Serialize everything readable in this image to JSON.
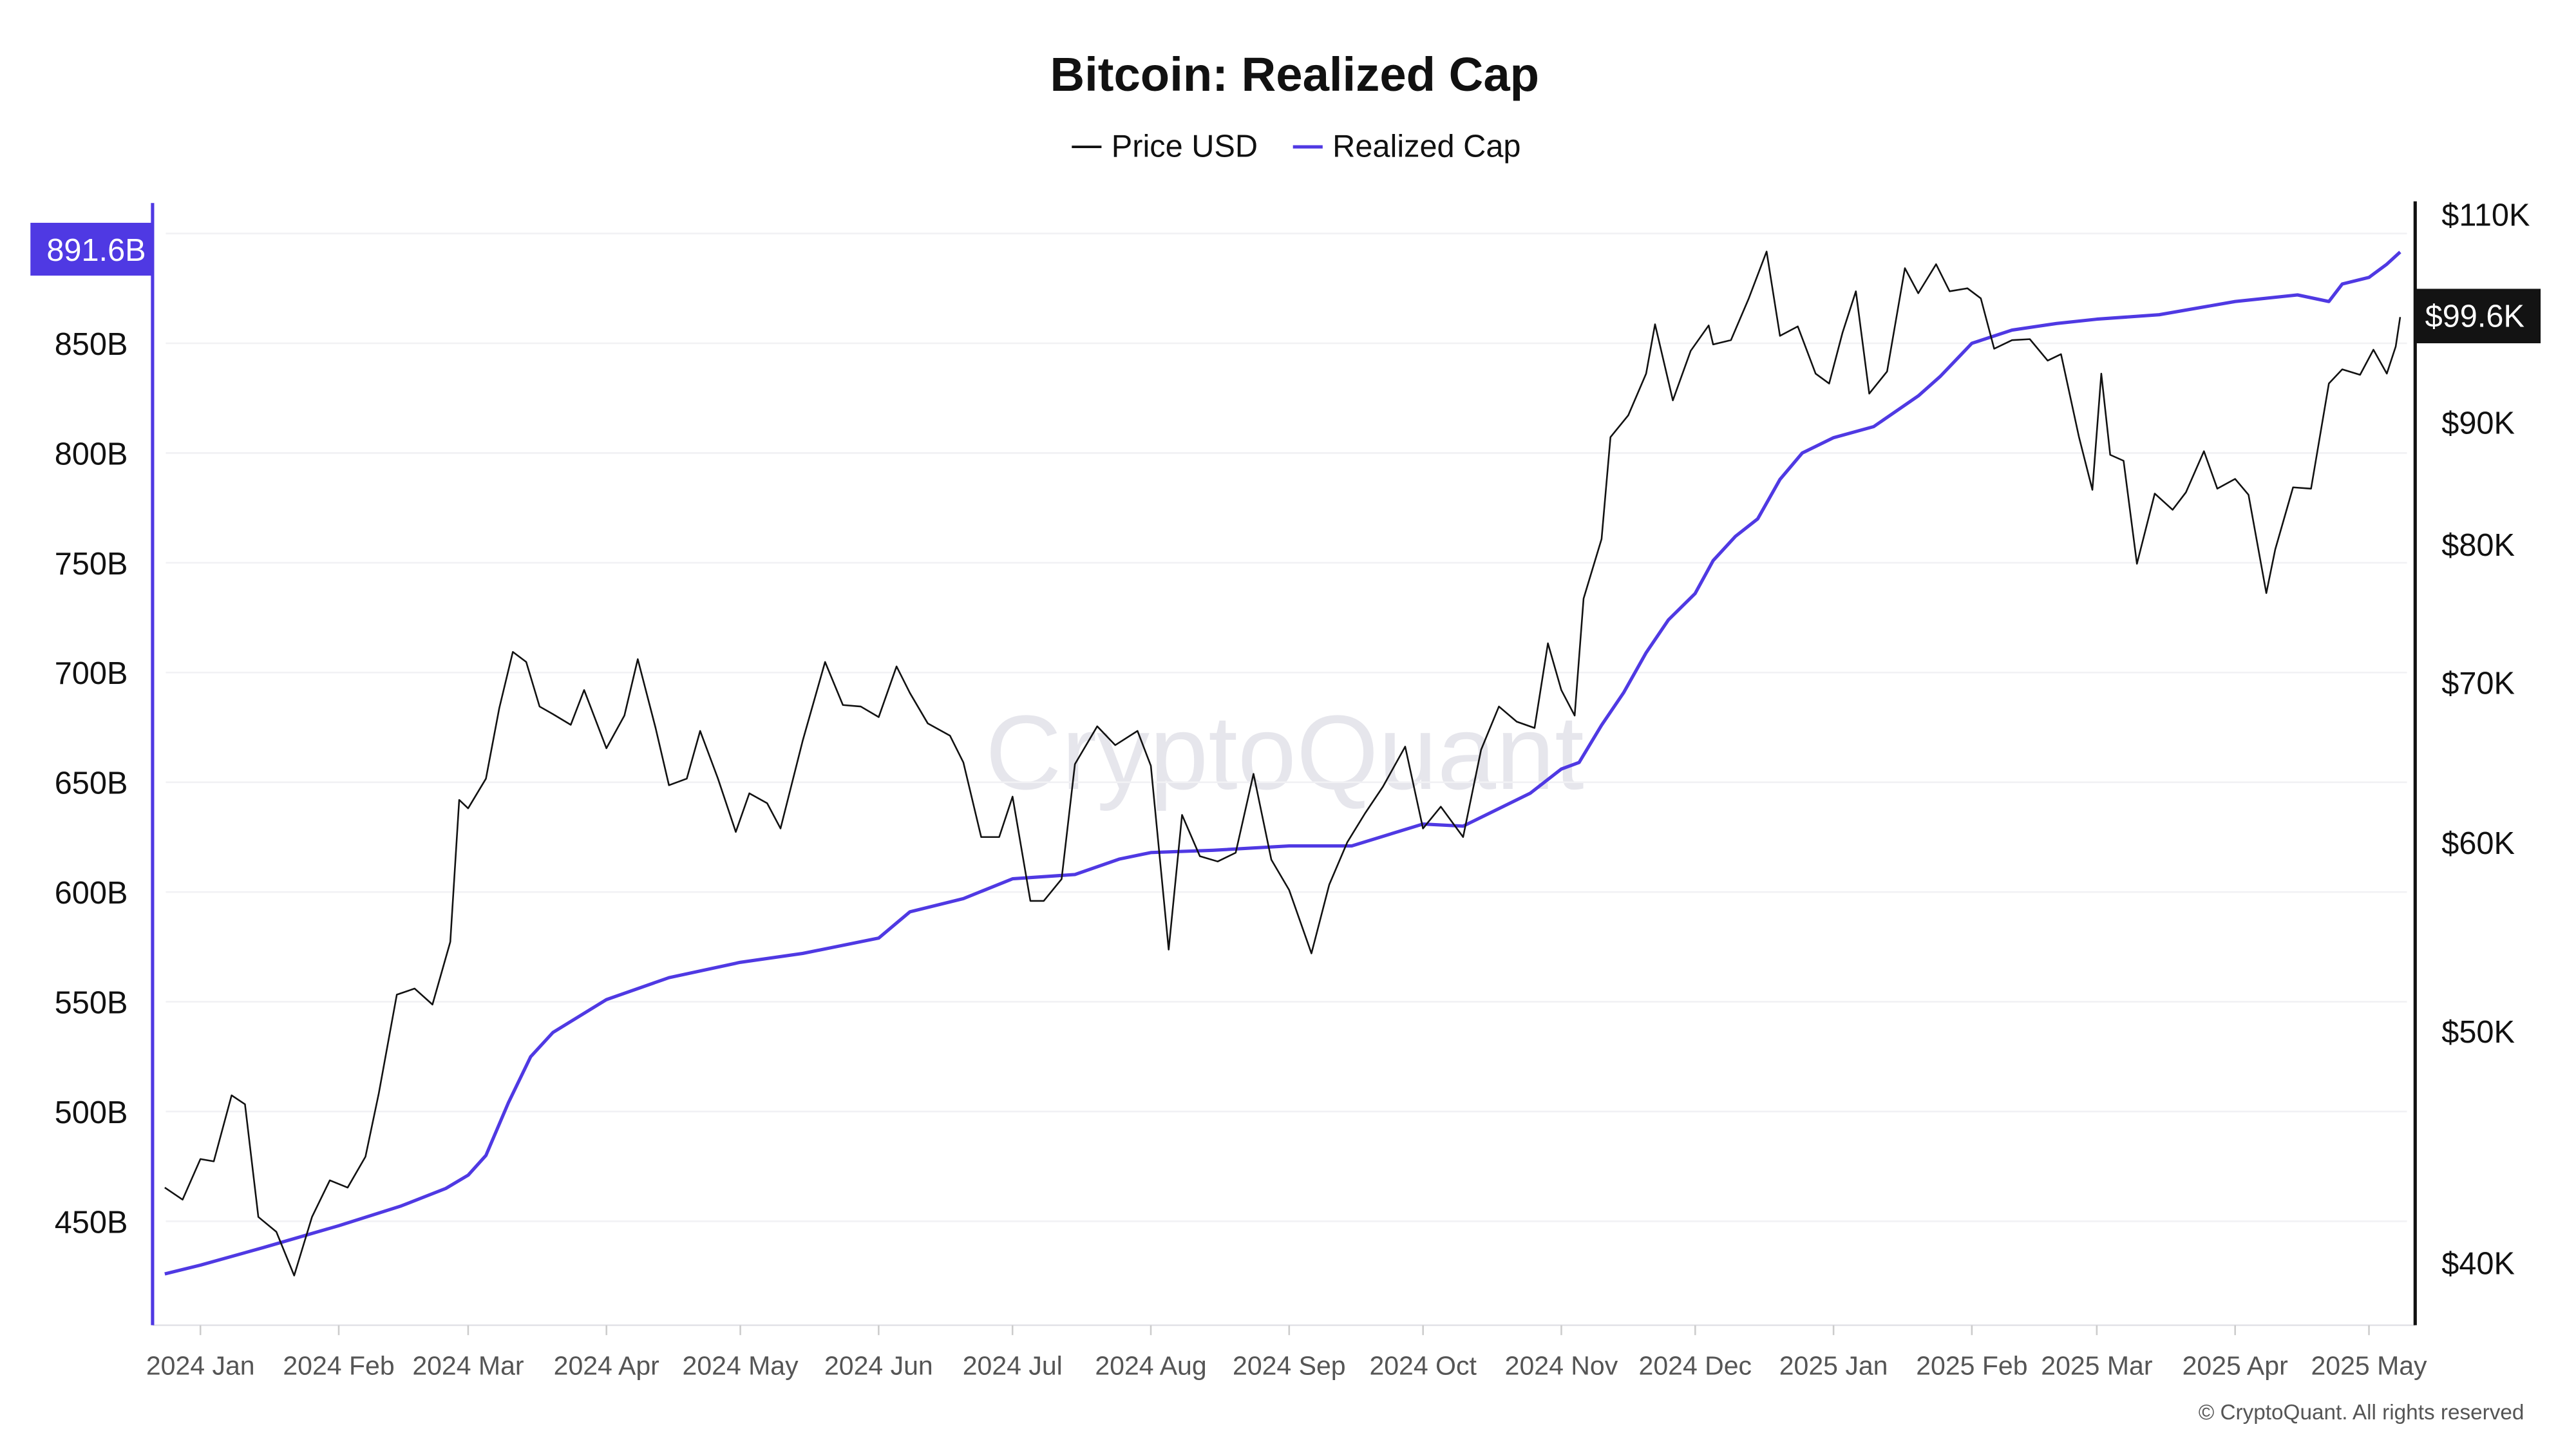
{
  "chart_data": {
    "type": "line",
    "title": "Bitcoin: Realized Cap",
    "legend": {
      "placement": "top-center",
      "items": [
        {
          "name": "Price USD",
          "color": "#111111"
        },
        {
          "name": "Realized Cap",
          "color": "#4f39e3"
        }
      ]
    },
    "grid": true,
    "watermark": "CryptoQuant",
    "copyright": "© CryptoQuant. All rights reserved",
    "x_axis": {
      "ticks": [
        "2024-01-01",
        "2024-02-01",
        "2024-03-01",
        "2024-04-01",
        "2024-05-01",
        "2024-06-01",
        "2024-07-01",
        "2024-08-01",
        "2024-09-01",
        "2024-10-01",
        "2024-11-01",
        "2024-12-01",
        "2025-01-01",
        "2025-02-01",
        "2025-03-01",
        "2025-04-01",
        "2025-05-01"
      ],
      "tick_labels": [
        "2024 Jan",
        "2024 Feb",
        "2024 Mar",
        "2024 Apr",
        "2024 May",
        "2024 Jun",
        "2024 Jul",
        "2024 Aug",
        "2024 Sep",
        "2024 Oct",
        "2024 Nov",
        "2024 Dec",
        "2025 Jan",
        "2025 Feb",
        "2025 Mar",
        "2025 Apr",
        "2025 May"
      ]
    },
    "y_left": {
      "series": "Realized Cap",
      "unit": "B USD",
      "scale": "linear",
      "range": [
        405,
        918
      ],
      "ticks": [
        450,
        500,
        550,
        600,
        650,
        700,
        750,
        800,
        850,
        900
      ],
      "tick_labels": [
        "450B",
        "500B",
        "550B",
        "600B",
        "650B",
        "700B",
        "750B",
        "800B",
        "850B",
        ""
      ],
      "current_value_label": "891.6B",
      "color": "#4f39e3"
    },
    "y_right": {
      "series": "Price USD",
      "unit": "K USD",
      "scale": "log",
      "range": [
        37,
        112
      ],
      "ticks": [
        40,
        50,
        60,
        70,
        80,
        90,
        110
      ],
      "tick_labels": [
        "$40K",
        "$50K",
        "$60K",
        "$70K",
        "$80K",
        "$90K",
        "$110K"
      ],
      "current_value_label": "$99.6K",
      "color": "#111111"
    },
    "series": [
      {
        "name": "Realized Cap",
        "axis": "left",
        "color": "#4f39e3",
        "points": [
          [
            "2023-12-24",
            426
          ],
          [
            "2024-01-01",
            430
          ],
          [
            "2024-01-15",
            438
          ],
          [
            "2024-02-01",
            448
          ],
          [
            "2024-02-15",
            457
          ],
          [
            "2024-02-25",
            465
          ],
          [
            "2024-03-01",
            471
          ],
          [
            "2024-03-05",
            480
          ],
          [
            "2024-03-10",
            504
          ],
          [
            "2024-03-15",
            525
          ],
          [
            "2024-03-20",
            536
          ],
          [
            "2024-04-01",
            551
          ],
          [
            "2024-04-15",
            561
          ],
          [
            "2024-05-01",
            568
          ],
          [
            "2024-05-15",
            572
          ],
          [
            "2024-06-01",
            579
          ],
          [
            "2024-06-08",
            591
          ],
          [
            "2024-06-20",
            597
          ],
          [
            "2024-07-01",
            606
          ],
          [
            "2024-07-15",
            608
          ],
          [
            "2024-07-25",
            615
          ],
          [
            "2024-08-01",
            618
          ],
          [
            "2024-08-15",
            619
          ],
          [
            "2024-09-01",
            621
          ],
          [
            "2024-09-15",
            621
          ],
          [
            "2024-10-01",
            631
          ],
          [
            "2024-10-10",
            630
          ],
          [
            "2024-10-25",
            645
          ],
          [
            "2024-11-01",
            656
          ],
          [
            "2024-11-05",
            659
          ],
          [
            "2024-11-10",
            676
          ],
          [
            "2024-11-15",
            691
          ],
          [
            "2024-11-20",
            709
          ],
          [
            "2024-11-25",
            724
          ],
          [
            "2024-12-01",
            736
          ],
          [
            "2024-12-05",
            751
          ],
          [
            "2024-12-10",
            762
          ],
          [
            "2024-12-15",
            770
          ],
          [
            "2024-12-20",
            788
          ],
          [
            "2024-12-25",
            800
          ],
          [
            "2025-01-01",
            807
          ],
          [
            "2025-01-10",
            812
          ],
          [
            "2025-01-20",
            826
          ],
          [
            "2025-01-25",
            835
          ],
          [
            "2025-02-01",
            850
          ],
          [
            "2025-02-10",
            856
          ],
          [
            "2025-02-20",
            859
          ],
          [
            "2025-03-01",
            861
          ],
          [
            "2025-03-15",
            863
          ],
          [
            "2025-04-01",
            869
          ],
          [
            "2025-04-15",
            872
          ],
          [
            "2025-04-22",
            869
          ],
          [
            "2025-04-25",
            877
          ],
          [
            "2025-05-01",
            880
          ],
          [
            "2025-05-05",
            886
          ],
          [
            "2025-05-08",
            891.6
          ]
        ]
      },
      {
        "name": "Price USD",
        "axis": "right",
        "color": "#111111",
        "points": [
          [
            "2023-12-24",
            43.0
          ],
          [
            "2023-12-28",
            42.5
          ],
          [
            "2024-01-01",
            44.2
          ],
          [
            "2024-01-04",
            44.1
          ],
          [
            "2024-01-08",
            47.0
          ],
          [
            "2024-01-11",
            46.6
          ],
          [
            "2024-01-14",
            41.8
          ],
          [
            "2024-01-18",
            41.2
          ],
          [
            "2024-01-22",
            39.5
          ],
          [
            "2024-01-26",
            41.8
          ],
          [
            "2024-01-30",
            43.3
          ],
          [
            "2024-02-03",
            43.0
          ],
          [
            "2024-02-07",
            44.3
          ],
          [
            "2024-02-10",
            47.1
          ],
          [
            "2024-02-14",
            51.8
          ],
          [
            "2024-02-18",
            52.1
          ],
          [
            "2024-02-22",
            51.3
          ],
          [
            "2024-02-26",
            54.5
          ],
          [
            "2024-02-28",
            62.5
          ],
          [
            "2024-03-01",
            62.0
          ],
          [
            "2024-03-05",
            63.8
          ],
          [
            "2024-03-08",
            68.3
          ],
          [
            "2024-03-11",
            72.1
          ],
          [
            "2024-03-14",
            71.4
          ],
          [
            "2024-03-17",
            68.4
          ],
          [
            "2024-03-20",
            67.9
          ],
          [
            "2024-03-24",
            67.2
          ],
          [
            "2024-03-27",
            69.5
          ],
          [
            "2024-04-01",
            65.7
          ],
          [
            "2024-04-05",
            67.8
          ],
          [
            "2024-04-08",
            71.6
          ],
          [
            "2024-04-12",
            67.0
          ],
          [
            "2024-04-15",
            63.4
          ],
          [
            "2024-04-19",
            63.8
          ],
          [
            "2024-04-22",
            66.8
          ],
          [
            "2024-04-26",
            63.8
          ],
          [
            "2024-04-30",
            60.6
          ],
          [
            "2024-05-03",
            62.9
          ],
          [
            "2024-05-07",
            62.3
          ],
          [
            "2024-05-10",
            60.8
          ],
          [
            "2024-05-15",
            66.2
          ],
          [
            "2024-05-20",
            71.4
          ],
          [
            "2024-05-24",
            68.5
          ],
          [
            "2024-05-28",
            68.4
          ],
          [
            "2024-06-01",
            67.7
          ],
          [
            "2024-06-05",
            71.1
          ],
          [
            "2024-06-08",
            69.3
          ],
          [
            "2024-06-12",
            67.3
          ],
          [
            "2024-06-17",
            66.5
          ],
          [
            "2024-06-20",
            64.8
          ],
          [
            "2024-06-24",
            60.3
          ],
          [
            "2024-06-28",
            60.3
          ],
          [
            "2024-07-01",
            62.7
          ],
          [
            "2024-07-05",
            56.7
          ],
          [
            "2024-07-08",
            56.7
          ],
          [
            "2024-07-12",
            57.9
          ],
          [
            "2024-07-15",
            64.7
          ],
          [
            "2024-07-20",
            67.1
          ],
          [
            "2024-07-24",
            65.9
          ],
          [
            "2024-07-29",
            66.8
          ],
          [
            "2024-08-01",
            64.6
          ],
          [
            "2024-08-05",
            54.1
          ],
          [
            "2024-08-08",
            61.6
          ],
          [
            "2024-08-12",
            59.2
          ],
          [
            "2024-08-16",
            58.9
          ],
          [
            "2024-08-20",
            59.4
          ],
          [
            "2024-08-24",
            64.1
          ],
          [
            "2024-08-28",
            59.0
          ],
          [
            "2024-09-01",
            57.3
          ],
          [
            "2024-09-06",
            53.9
          ],
          [
            "2024-09-10",
            57.6
          ],
          [
            "2024-09-14",
            60.0
          ],
          [
            "2024-09-18",
            61.7
          ],
          [
            "2024-09-22",
            63.3
          ],
          [
            "2024-09-27",
            65.8
          ],
          [
            "2024-10-01",
            60.8
          ],
          [
            "2024-10-05",
            62.1
          ],
          [
            "2024-10-10",
            60.3
          ],
          [
            "2024-10-14",
            65.6
          ],
          [
            "2024-10-18",
            68.4
          ],
          [
            "2024-10-22",
            67.4
          ],
          [
            "2024-10-26",
            67.0
          ],
          [
            "2024-10-29",
            72.7
          ],
          [
            "2024-11-01",
            69.5
          ],
          [
            "2024-11-04",
            67.8
          ],
          [
            "2024-11-06",
            75.9
          ],
          [
            "2024-11-10",
            80.4
          ],
          [
            "2024-11-12",
            88.7
          ],
          [
            "2024-11-16",
            90.6
          ],
          [
            "2024-11-20",
            94.3
          ],
          [
            "2024-11-22",
            98.9
          ],
          [
            "2024-11-26",
            91.9
          ],
          [
            "2024-11-30",
            96.4
          ],
          [
            "2024-12-04",
            98.8
          ],
          [
            "2024-12-05",
            97.0
          ],
          [
            "2024-12-09",
            97.4
          ],
          [
            "2024-12-13",
            101.4
          ],
          [
            "2024-12-17",
            106.1
          ],
          [
            "2024-12-20",
            97.8
          ],
          [
            "2024-12-24",
            98.7
          ],
          [
            "2024-12-28",
            94.3
          ],
          [
            "2024-12-31",
            93.4
          ],
          [
            "2025-01-03",
            98.1
          ],
          [
            "2025-01-06",
            102.1
          ],
          [
            "2025-01-09",
            92.5
          ],
          [
            "2025-01-13",
            94.5
          ],
          [
            "2025-01-17",
            104.4
          ],
          [
            "2025-01-20",
            101.9
          ],
          [
            "2025-01-24",
            104.8
          ],
          [
            "2025-01-27",
            102.1
          ],
          [
            "2025-01-31",
            102.4
          ],
          [
            "2025-02-03",
            101.4
          ],
          [
            "2025-02-06",
            96.6
          ],
          [
            "2025-02-10",
            97.4
          ],
          [
            "2025-02-14",
            97.5
          ],
          [
            "2025-02-18",
            95.5
          ],
          [
            "2025-02-21",
            96.1
          ],
          [
            "2025-02-25",
            88.7
          ],
          [
            "2025-02-28",
            84.3
          ],
          [
            "2025-03-02",
            94.3
          ],
          [
            "2025-03-04",
            87.2
          ],
          [
            "2025-03-07",
            86.7
          ],
          [
            "2025-03-10",
            78.5
          ],
          [
            "2025-03-14",
            84.0
          ],
          [
            "2025-03-18",
            82.7
          ],
          [
            "2025-03-21",
            84.1
          ],
          [
            "2025-03-25",
            87.5
          ],
          [
            "2025-03-28",
            84.4
          ],
          [
            "2025-04-01",
            85.2
          ],
          [
            "2025-04-04",
            83.9
          ],
          [
            "2025-04-08",
            76.3
          ],
          [
            "2025-04-10",
            79.6
          ],
          [
            "2025-04-14",
            84.5
          ],
          [
            "2025-04-18",
            84.4
          ],
          [
            "2025-04-22",
            93.4
          ],
          [
            "2025-04-25",
            94.7
          ],
          [
            "2025-04-29",
            94.2
          ],
          [
            "2025-05-02",
            96.5
          ],
          [
            "2025-05-05",
            94.3
          ],
          [
            "2025-05-07",
            96.8
          ],
          [
            "2025-05-08",
            99.6
          ]
        ]
      }
    ]
  }
}
